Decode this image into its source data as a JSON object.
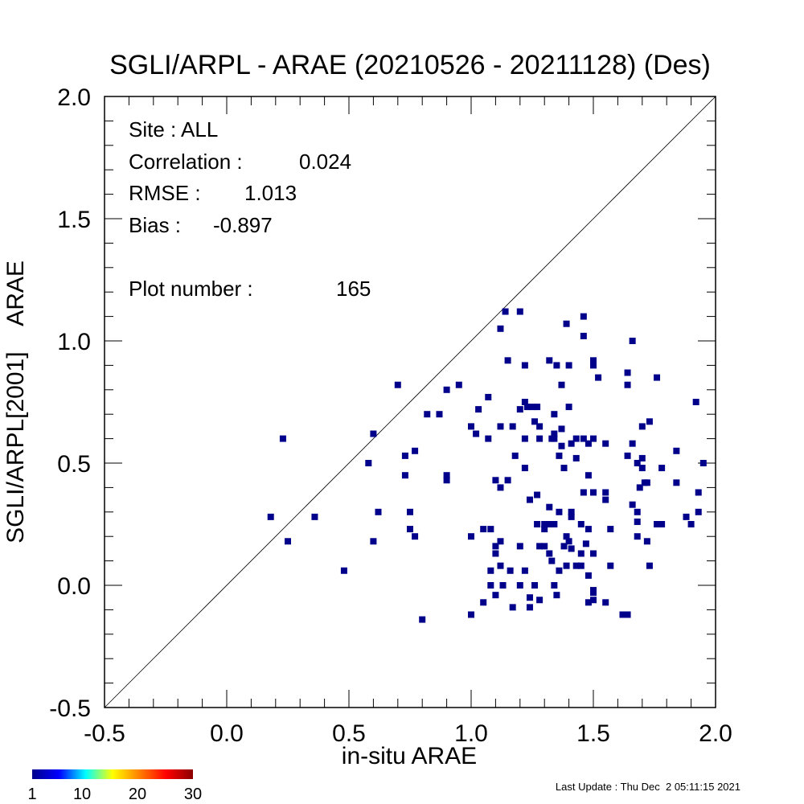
{
  "chart_data": {
    "type": "scatter",
    "title": "SGLI/ARPL - ARAE (20210526 - 20211128) (Des)",
    "xlabel": "in-situ ARAE",
    "ylabel": "SGLI/ARPL[2001]    ARAE",
    "xlim": [
      -0.5,
      2.0
    ],
    "ylim": [
      -0.5,
      2.0
    ],
    "x_ticks": [
      "-0.5",
      "0.0",
      "0.5",
      "1.0",
      "1.5",
      "2.0"
    ],
    "x_tick_values": [
      -0.5,
      0.0,
      0.5,
      1.0,
      1.5,
      2.0
    ],
    "y_ticks": [
      "-0.5",
      "0.0",
      "0.5",
      "1.0",
      "1.5",
      "2.0"
    ],
    "y_tick_values": [
      -0.5,
      0.0,
      0.5,
      1.0,
      1.5,
      2.0
    ],
    "grid": false,
    "reference_line": "1:1",
    "marker_color": "#00008b",
    "stats": {
      "site": "Site : ALL",
      "correlation_label": "Correlation :",
      "correlation_value": "0.024",
      "rmse_label": "RMSE :",
      "rmse_value": "1.013",
      "bias_label": "Bias :",
      "bias_value": "-0.897",
      "plot_number_label": "Plot number :",
      "plot_number_value": "165"
    },
    "colorbar": {
      "tick_labels": [
        "1",
        "10",
        "20",
        "30"
      ],
      "tick_values": [
        1,
        10,
        20,
        30
      ],
      "range": [
        1,
        30
      ],
      "colors": [
        "#00008b",
        "#0000ff",
        "#00ffff",
        "#ffff00",
        "#ff8000",
        "#ff0000",
        "#8b0000"
      ]
    },
    "points": [
      [
        0.18,
        0.28
      ],
      [
        0.23,
        0.6
      ],
      [
        0.25,
        0.18
      ],
      [
        0.36,
        0.28
      ],
      [
        0.48,
        0.06
      ],
      [
        0.58,
        0.5
      ],
      [
        0.6,
        0.62
      ],
      [
        0.6,
        0.18
      ],
      [
        0.62,
        0.3
      ],
      [
        0.7,
        0.82
      ],
      [
        0.73,
        0.53
      ],
      [
        0.73,
        0.45
      ],
      [
        0.75,
        0.3
      ],
      [
        0.75,
        0.23
      ],
      [
        0.77,
        0.55
      ],
      [
        0.77,
        0.2
      ],
      [
        0.8,
        -0.14
      ],
      [
        0.82,
        0.7
      ],
      [
        0.87,
        0.7
      ],
      [
        0.9,
        0.8
      ],
      [
        0.9,
        0.45
      ],
      [
        0.9,
        0.43
      ],
      [
        0.95,
        0.82
      ],
      [
        1.0,
        0.65
      ],
      [
        1.0,
        0.2
      ],
      [
        1.0,
        -0.12
      ],
      [
        1.02,
        0.62
      ],
      [
        1.03,
        0.72
      ],
      [
        1.05,
        0.23
      ],
      [
        1.05,
        -0.07
      ],
      [
        1.07,
        0.77
      ],
      [
        1.07,
        0.6
      ],
      [
        1.08,
        0.23
      ],
      [
        1.08,
        0.06
      ],
      [
        1.08,
        0.0
      ],
      [
        1.1,
        0.43
      ],
      [
        1.1,
        0.16
      ],
      [
        1.1,
        0.13
      ],
      [
        1.1,
        -0.04
      ],
      [
        1.12,
        1.05
      ],
      [
        1.12,
        0.65
      ],
      [
        1.12,
        0.4
      ],
      [
        1.12,
        0.18
      ],
      [
        1.12,
        0.08
      ],
      [
        1.13,
        0.0
      ],
      [
        1.14,
        1.12
      ],
      [
        1.15,
        0.92
      ],
      [
        1.15,
        0.43
      ],
      [
        1.16,
        0.06
      ],
      [
        1.17,
        0.65
      ],
      [
        1.17,
        -0.09
      ],
      [
        1.18,
        0.53
      ],
      [
        1.2,
        1.12
      ],
      [
        1.2,
        0.72
      ],
      [
        1.2,
        0.16
      ],
      [
        1.2,
        0.0
      ],
      [
        1.22,
        0.9
      ],
      [
        1.22,
        0.75
      ],
      [
        1.22,
        0.6
      ],
      [
        1.22,
        0.48
      ],
      [
        1.22,
        0.06
      ],
      [
        1.23,
        0.73
      ],
      [
        1.24,
        0.35
      ],
      [
        1.24,
        -0.05
      ],
      [
        1.24,
        -0.09
      ],
      [
        1.25,
        0.73
      ],
      [
        1.26,
        0.67
      ],
      [
        1.26,
        0.0
      ],
      [
        1.27,
        0.73
      ],
      [
        1.27,
        0.37
      ],
      [
        1.27,
        0.25
      ],
      [
        1.28,
        0.65
      ],
      [
        1.28,
        0.6
      ],
      [
        1.28,
        0.16
      ],
      [
        1.28,
        -0.06
      ],
      [
        1.3,
        0.25
      ],
      [
        1.3,
        0.23
      ],
      [
        1.3,
        0.16
      ],
      [
        1.31,
        0.25
      ],
      [
        1.32,
        0.92
      ],
      [
        1.32,
        0.32
      ],
      [
        1.32,
        0.25
      ],
      [
        1.32,
        0.13
      ],
      [
        1.33,
        0.6
      ],
      [
        1.33,
        0.1
      ],
      [
        1.34,
        0.7
      ],
      [
        1.34,
        0.62
      ],
      [
        1.34,
        0.6
      ],
      [
        1.34,
        0.25
      ],
      [
        1.34,
        0.0
      ],
      [
        1.35,
        0.9
      ],
      [
        1.35,
        -0.04
      ],
      [
        1.36,
        0.53
      ],
      [
        1.36,
        0.3
      ],
      [
        1.36,
        0.06
      ],
      [
        1.37,
        0.82
      ],
      [
        1.37,
        0.64
      ],
      [
        1.37,
        0.57
      ],
      [
        1.38,
        0.48
      ],
      [
        1.38,
        0.16
      ],
      [
        1.39,
        1.07
      ],
      [
        1.39,
        0.2
      ],
      [
        1.39,
        0.08
      ],
      [
        1.4,
        0.9
      ],
      [
        1.4,
        0.73
      ],
      [
        1.4,
        0.18
      ],
      [
        1.41,
        0.58
      ],
      [
        1.41,
        0.3
      ],
      [
        1.41,
        0.28
      ],
      [
        1.41,
        0.15
      ],
      [
        1.43,
        0.6
      ],
      [
        1.43,
        0.52
      ],
      [
        1.43,
        0.08
      ],
      [
        1.45,
        0.25
      ],
      [
        1.45,
        0.13
      ],
      [
        1.45,
        0.08
      ],
      [
        1.46,
        1.1
      ],
      [
        1.46,
        1.02
      ],
      [
        1.46,
        0.6
      ],
      [
        1.46,
        0.38
      ],
      [
        1.47,
        0.17
      ],
      [
        1.48,
        0.58
      ],
      [
        1.48,
        0.45
      ],
      [
        1.48,
        0.23
      ],
      [
        1.48,
        0.04
      ],
      [
        1.48,
        -0.07
      ],
      [
        1.5,
        0.92
      ],
      [
        1.5,
        0.9
      ],
      [
        1.5,
        0.6
      ],
      [
        1.5,
        0.38
      ],
      [
        1.5,
        0.13
      ],
      [
        1.5,
        -0.02
      ],
      [
        1.5,
        -0.03
      ],
      [
        1.5,
        -0.06
      ],
      [
        1.52,
        0.85
      ],
      [
        1.55,
        0.58
      ],
      [
        1.55,
        0.38
      ],
      [
        1.55,
        0.35
      ],
      [
        1.55,
        -0.07
      ],
      [
        1.57,
        0.23
      ],
      [
        1.57,
        0.08
      ],
      [
        1.62,
        -0.12
      ],
      [
        1.64,
        -0.12
      ],
      [
        1.64,
        0.87
      ],
      [
        1.64,
        0.82
      ],
      [
        1.64,
        0.53
      ],
      [
        1.66,
        1.0
      ],
      [
        1.66,
        0.58
      ],
      [
        1.66,
        0.33
      ],
      [
        1.68,
        0.5
      ],
      [
        1.68,
        0.3
      ],
      [
        1.68,
        0.26
      ],
      [
        1.68,
        0.2
      ],
      [
        1.69,
        0.4
      ],
      [
        1.7,
        0.65
      ],
      [
        1.7,
        0.52
      ],
      [
        1.7,
        0.48
      ],
      [
        1.71,
        0.42
      ],
      [
        1.72,
        0.42
      ],
      [
        1.72,
        0.18
      ],
      [
        1.73,
        0.67
      ],
      [
        1.73,
        0.08
      ],
      [
        1.76,
        0.85
      ],
      [
        1.76,
        0.25
      ],
      [
        1.78,
        0.48
      ],
      [
        1.78,
        0.25
      ],
      [
        1.84,
        0.55
      ],
      [
        1.84,
        0.42
      ],
      [
        1.88,
        0.28
      ],
      [
        1.9,
        0.25
      ],
      [
        1.92,
        0.75
      ],
      [
        1.93,
        0.38
      ],
      [
        1.93,
        0.3
      ],
      [
        1.95,
        0.5
      ]
    ]
  },
  "footer": {
    "last_update": "Last Update : Thu Dec  2 05:11:15 2021"
  }
}
